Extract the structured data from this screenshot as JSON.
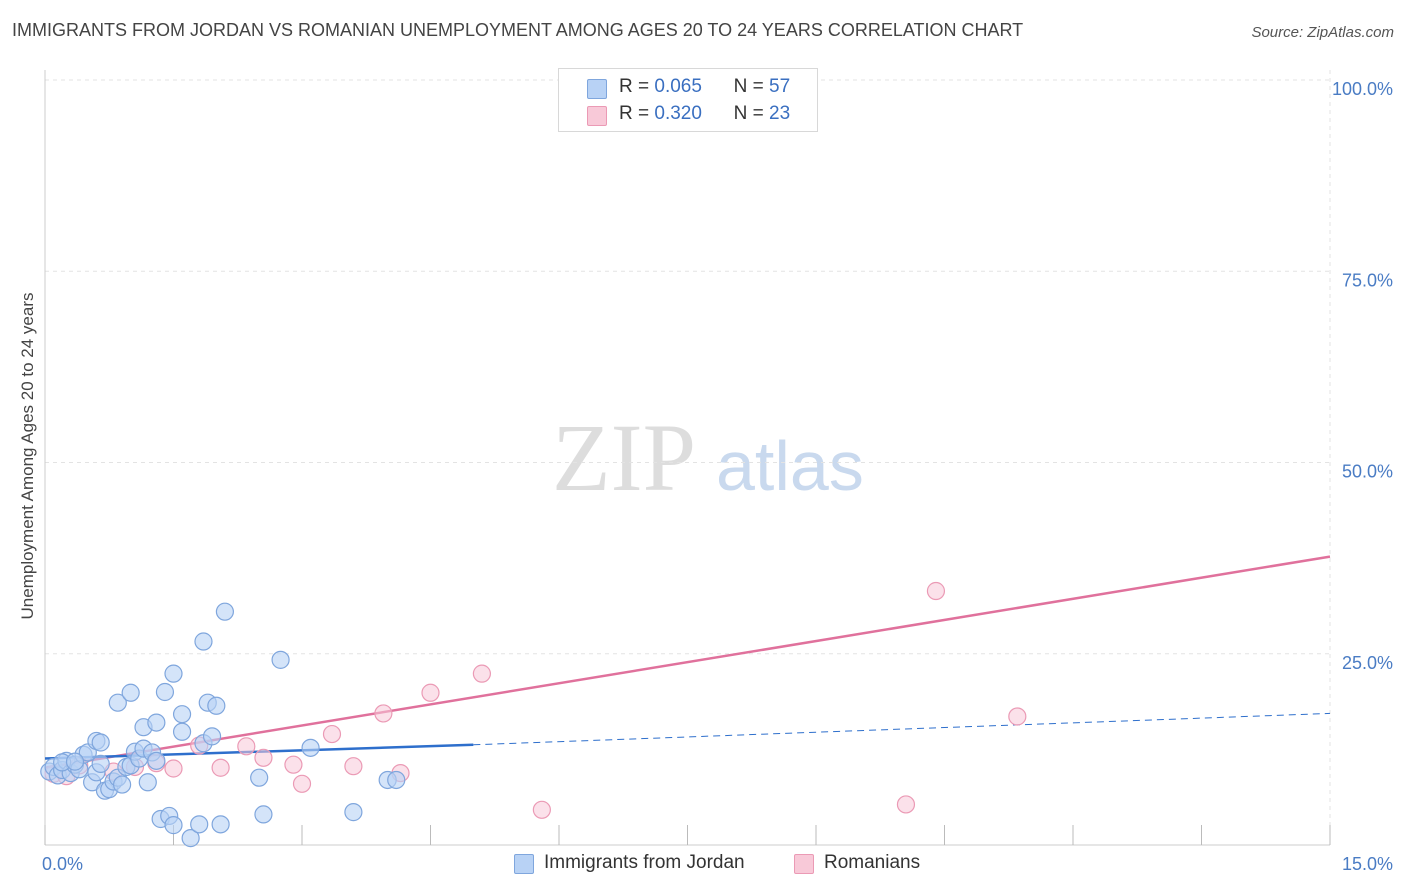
{
  "header": {
    "title": "IMMIGRANTS FROM JORDAN VS ROMANIAN UNEMPLOYMENT AMONG AGES 20 TO 24 YEARS CORRELATION CHART",
    "source": "Source: ZipAtlas.com"
  },
  "watermark": {
    "zip": "ZIP",
    "atlas": "atlas"
  },
  "legend_top": {
    "series1": {
      "r_label": "R =",
      "r_value": "0.065",
      "n_label": "N =",
      "n_value": "57"
    },
    "series2": {
      "r_label": "R =",
      "r_value": "0.320",
      "n_label": "N =",
      "n_value": "23"
    }
  },
  "colors": {
    "series1_fill": "#b8d2f5",
    "series1_stroke": "#7fa6dd",
    "series1_line": "#2e6fcc",
    "series2_fill": "#f8c9d8",
    "series2_stroke": "#eb9ab5",
    "series2_line": "#e0719c",
    "grid": "#e3e3e3",
    "tick_text": "#4a7cc4"
  },
  "chart_data": {
    "type": "scatter",
    "title": "IMMIGRANTS FROM JORDAN VS ROMANIAN UNEMPLOYMENT AMONG AGES 20 TO 24 YEARS CORRELATION CHART",
    "xlabel": "",
    "ylabel": "Unemployment Among Ages 20 to 24 years",
    "xlim": [
      0,
      15
    ],
    "ylim": [
      0,
      105
    ],
    "x_tick_labels": [
      "0.0%",
      "15.0%"
    ],
    "y_ticks": [
      25,
      50,
      75,
      100
    ],
    "y_tick_labels": [
      "25.0%",
      "50.0%",
      "75.0%",
      "100.0%"
    ],
    "legend": [
      "Immigrants from Jordan",
      "Romanians"
    ],
    "series": [
      {
        "name": "Immigrants from Jordan",
        "points": [
          [
            0.05,
            9.6
          ],
          [
            0.1,
            10.2
          ],
          [
            0.15,
            9.1
          ],
          [
            0.2,
            9.8
          ],
          [
            0.25,
            11.0
          ],
          [
            0.3,
            9.4
          ],
          [
            0.35,
            10.5
          ],
          [
            0.4,
            9.9
          ],
          [
            0.45,
            11.8
          ],
          [
            0.5,
            12.1
          ],
          [
            0.55,
            8.2
          ],
          [
            0.6,
            9.5
          ],
          [
            0.65,
            10.6
          ],
          [
            0.6,
            13.6
          ],
          [
            0.65,
            13.4
          ],
          [
            0.7,
            7.1
          ],
          [
            0.75,
            7.3
          ],
          [
            0.8,
            8.3
          ],
          [
            0.85,
            8.8
          ],
          [
            0.85,
            18.6
          ],
          [
            0.9,
            7.9
          ],
          [
            0.95,
            10.2
          ],
          [
            1.0,
            10.4
          ],
          [
            1.0,
            19.9
          ],
          [
            1.05,
            12.2
          ],
          [
            1.1,
            11.3
          ],
          [
            1.15,
            12.6
          ],
          [
            1.15,
            15.4
          ],
          [
            1.2,
            8.2
          ],
          [
            1.25,
            12.1
          ],
          [
            1.3,
            16.0
          ],
          [
            1.3,
            11.0
          ],
          [
            1.35,
            3.4
          ],
          [
            1.4,
            20.0
          ],
          [
            1.45,
            3.8
          ],
          [
            1.5,
            22.4
          ],
          [
            1.5,
            2.6
          ],
          [
            1.6,
            14.8
          ],
          [
            1.6,
            17.1
          ],
          [
            1.7,
            0.9
          ],
          [
            1.8,
            2.7
          ],
          [
            1.85,
            13.3
          ],
          [
            1.85,
            26.6
          ],
          [
            1.9,
            18.6
          ],
          [
            1.95,
            14.2
          ],
          [
            2.0,
            18.2
          ],
          [
            2.05,
            2.7
          ],
          [
            2.1,
            30.5
          ],
          [
            2.5,
            8.8
          ],
          [
            2.55,
            4.0
          ],
          [
            2.75,
            24.2
          ],
          [
            3.1,
            12.7
          ],
          [
            3.6,
            4.3
          ],
          [
            4.0,
            8.5
          ],
          [
            4.1,
            8.5
          ],
          [
            0.2,
            10.8
          ],
          [
            0.35,
            10.9
          ]
        ],
        "trend": {
          "x0": 0,
          "y0": 11.3,
          "x1": 5.0,
          "y1": 13.1,
          "dashed_to_x": 15,
          "dashed_to_y": 17.2
        }
      },
      {
        "name": "Romanians",
        "points": [
          [
            0.1,
            9.3
          ],
          [
            0.4,
            10.4
          ],
          [
            0.8,
            9.6
          ],
          [
            1.05,
            10.2
          ],
          [
            1.3,
            10.7
          ],
          [
            1.5,
            10.0
          ],
          [
            1.8,
            13.0
          ],
          [
            2.05,
            10.1
          ],
          [
            2.35,
            12.9
          ],
          [
            2.55,
            11.4
          ],
          [
            2.9,
            10.5
          ],
          [
            3.0,
            8.0
          ],
          [
            3.35,
            14.5
          ],
          [
            3.6,
            10.3
          ],
          [
            3.95,
            17.2
          ],
          [
            4.15,
            9.4
          ],
          [
            4.5,
            19.9
          ],
          [
            5.1,
            22.4
          ],
          [
            5.8,
            4.6
          ],
          [
            10.05,
            5.3
          ],
          [
            10.4,
            33.2
          ],
          [
            11.35,
            16.8
          ],
          [
            0.25,
            9.0
          ]
        ],
        "trend": {
          "x0": 0,
          "y0": 10.1,
          "x1": 15,
          "y1": 37.7
        }
      }
    ]
  },
  "legend_bottom": {
    "item1": "Immigrants from Jordan",
    "item2": "Romanians"
  }
}
